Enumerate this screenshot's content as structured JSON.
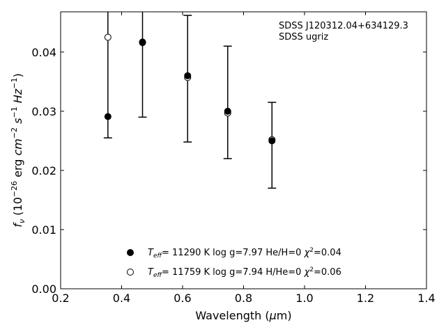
{
  "chart_data": {
    "type": "scatter",
    "xlabel": "Wavelength (μm)",
    "ylabel": "f_ν (10^-26 erg cm^-2 s^-1 Hz^-1)",
    "xlim": [
      0.2,
      1.4
    ],
    "ylim": [
      0.0,
      0.0468
    ],
    "xticks": [
      0.2,
      0.4,
      0.6,
      0.8,
      1.0,
      1.2,
      1.4
    ],
    "xtick_labels": [
      "0.2",
      "0.4",
      "0.6",
      "0.8",
      "1.0",
      "1.2",
      "1.4"
    ],
    "yticks": [
      0.0,
      0.01,
      0.02,
      0.03,
      0.04
    ],
    "ytick_labels": [
      "0.00",
      "0.01",
      "0.02",
      "0.03",
      "0.04"
    ],
    "grid": false,
    "legend_position": "bottom-center",
    "annotations": [
      "SDSS J120312.04+634129.3",
      "SDSS ugriz"
    ],
    "observed": {
      "x": [
        0.3551,
        0.4686,
        0.6166,
        0.748,
        0.8932
      ],
      "y": [
        0.0291,
        0.0417,
        0.0359,
        0.0299,
        0.025
      ],
      "err_low": [
        0.0255,
        0.029,
        0.0248,
        0.022,
        0.017
      ],
      "err_high": [
        0.047,
        0.047,
        0.0462,
        0.041,
        0.0315
      ]
    },
    "series": [
      {
        "name": "Teff= 11290 K  log g=7.97  He/H=0  χ2=0.04",
        "marker": "filled",
        "x": [
          0.3551,
          0.4686,
          0.6166,
          0.748,
          0.8932
        ],
        "y": [
          0.0291,
          0.0416,
          0.036,
          0.03,
          0.025
        ]
      },
      {
        "name": "Teff= 11759 K  log g=7.94  H/He=0  χ2=0.06",
        "marker": "open",
        "x": [
          0.3551,
          0.4686,
          0.6166,
          0.748,
          0.8932
        ],
        "y": [
          0.0425,
          0.0417,
          0.0357,
          0.0297,
          0.0252
        ]
      }
    ]
  },
  "colors": {
    "marker": "#000000",
    "background": "#ffffff"
  }
}
